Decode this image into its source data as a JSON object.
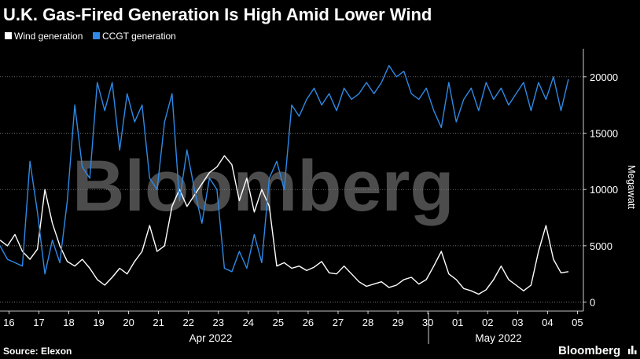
{
  "chart_data": {
    "type": "line",
    "title": "U.K. Gas-Fired Generation Is High Amid Lower Wind",
    "ylabel": "Megawatt",
    "ylim": [
      -800,
      22500
    ],
    "yticks": [
      0,
      5000,
      10000,
      15000,
      20000
    ],
    "xlim": [
      15.7,
      35.2
    ],
    "grid": true,
    "legend_position": "top-left",
    "x_ticks": [
      "16",
      "17",
      "18",
      "19",
      "20",
      "21",
      "22",
      "23",
      "24",
      "25",
      "26",
      "27",
      "28",
      "29",
      "30",
      "01",
      "02",
      "03",
      "04",
      "05"
    ],
    "month_labels": [
      "Apr 2022",
      "May 2022"
    ],
    "source": "Source: Elexon",
    "brand": "Bloomberg",
    "watermark": "Bloomberg",
    "series": [
      {
        "name": "Wind generation",
        "color": "#ffffff",
        "x": [
          15.7,
          15.95,
          16.2,
          16.45,
          16.7,
          16.95,
          17.2,
          17.45,
          17.7,
          17.95,
          18.2,
          18.45,
          18.7,
          18.95,
          19.2,
          19.45,
          19.7,
          19.95,
          20.2,
          20.45,
          20.7,
          20.95,
          21.2,
          21.45,
          21.7,
          21.95,
          22.2,
          22.45,
          22.7,
          22.95,
          23.2,
          23.45,
          23.7,
          23.95,
          24.2,
          24.45,
          24.7,
          24.95,
          25.2,
          25.45,
          25.7,
          25.95,
          26.2,
          26.45,
          26.7,
          26.95,
          27.2,
          27.45,
          27.7,
          27.95,
          28.2,
          28.45,
          28.7,
          28.95,
          29.2,
          29.45,
          29.7,
          29.95,
          30.2,
          30.45,
          30.7,
          30.95,
          31.2,
          31.45,
          31.7,
          31.95,
          32.2,
          32.45,
          32.7,
          32.95,
          33.2,
          33.45,
          33.7,
          33.95,
          34.2,
          34.45,
          34.7
        ],
        "values": [
          5500,
          5000,
          6000,
          4500,
          3800,
          4700,
          10000,
          7000,
          5000,
          3600,
          3200,
          3800,
          3000,
          2000,
          1500,
          2200,
          3000,
          2500,
          3600,
          4500,
          6800,
          4500,
          5000,
          8500,
          10000,
          8500,
          9500,
          10500,
          11500,
          12000,
          13000,
          12200,
          9000,
          11000,
          8000,
          10000,
          8500,
          3200,
          3500,
          3000,
          3200,
          2800,
          3100,
          3600,
          2600,
          2500,
          3200,
          2500,
          1800,
          1400,
          1600,
          1800,
          1300,
          1500,
          2000,
          2200,
          1600,
          2000,
          3200,
          4500,
          2500,
          2000,
          1200,
          1000,
          700,
          1100,
          2000,
          3200,
          2000,
          1500,
          1000,
          1500,
          4500,
          6800,
          3800,
          2600,
          2700
        ]
      },
      {
        "name": "CCGT generation",
        "color": "#2e8ae6",
        "x": [
          15.7,
          15.95,
          16.2,
          16.45,
          16.7,
          16.95,
          17.2,
          17.45,
          17.7,
          17.95,
          18.2,
          18.45,
          18.7,
          18.95,
          19.2,
          19.45,
          19.7,
          19.95,
          20.2,
          20.45,
          20.7,
          20.95,
          21.2,
          21.45,
          21.7,
          21.95,
          22.2,
          22.45,
          22.7,
          22.95,
          23.2,
          23.45,
          23.7,
          23.95,
          24.2,
          24.45,
          24.7,
          24.95,
          25.2,
          25.45,
          25.7,
          25.95,
          26.2,
          26.45,
          26.7,
          26.95,
          27.2,
          27.45,
          27.7,
          27.95,
          28.2,
          28.45,
          28.7,
          28.95,
          29.2,
          29.45,
          29.7,
          29.95,
          30.2,
          30.45,
          30.7,
          30.95,
          31.2,
          31.45,
          31.7,
          31.95,
          32.2,
          32.45,
          32.7,
          32.95,
          33.2,
          33.45,
          33.7,
          33.95,
          34.2,
          34.45,
          34.7
        ],
        "values": [
          5000,
          3800,
          3500,
          3200,
          12500,
          8000,
          2500,
          5500,
          3500,
          9000,
          17500,
          12000,
          11000,
          19500,
          17000,
          19500,
          13500,
          18500,
          16000,
          17500,
          11000,
          10000,
          16000,
          18500,
          9000,
          13500,
          10000,
          7000,
          11000,
          10000,
          3000,
          2700,
          4500,
          3000,
          6000,
          3500,
          11000,
          12500,
          10000,
          17500,
          16500,
          18000,
          19000,
          17500,
          18500,
          17000,
          19000,
          18000,
          18500,
          19500,
          18500,
          19500,
          21000,
          20000,
          20500,
          18500,
          18000,
          19000,
          17000,
          15500,
          19500,
          16000,
          18000,
          19000,
          17000,
          19500,
          18000,
          19000,
          17500,
          18500,
          19500,
          17000,
          19500,
          18000,
          20000,
          17000,
          19800
        ]
      }
    ]
  }
}
